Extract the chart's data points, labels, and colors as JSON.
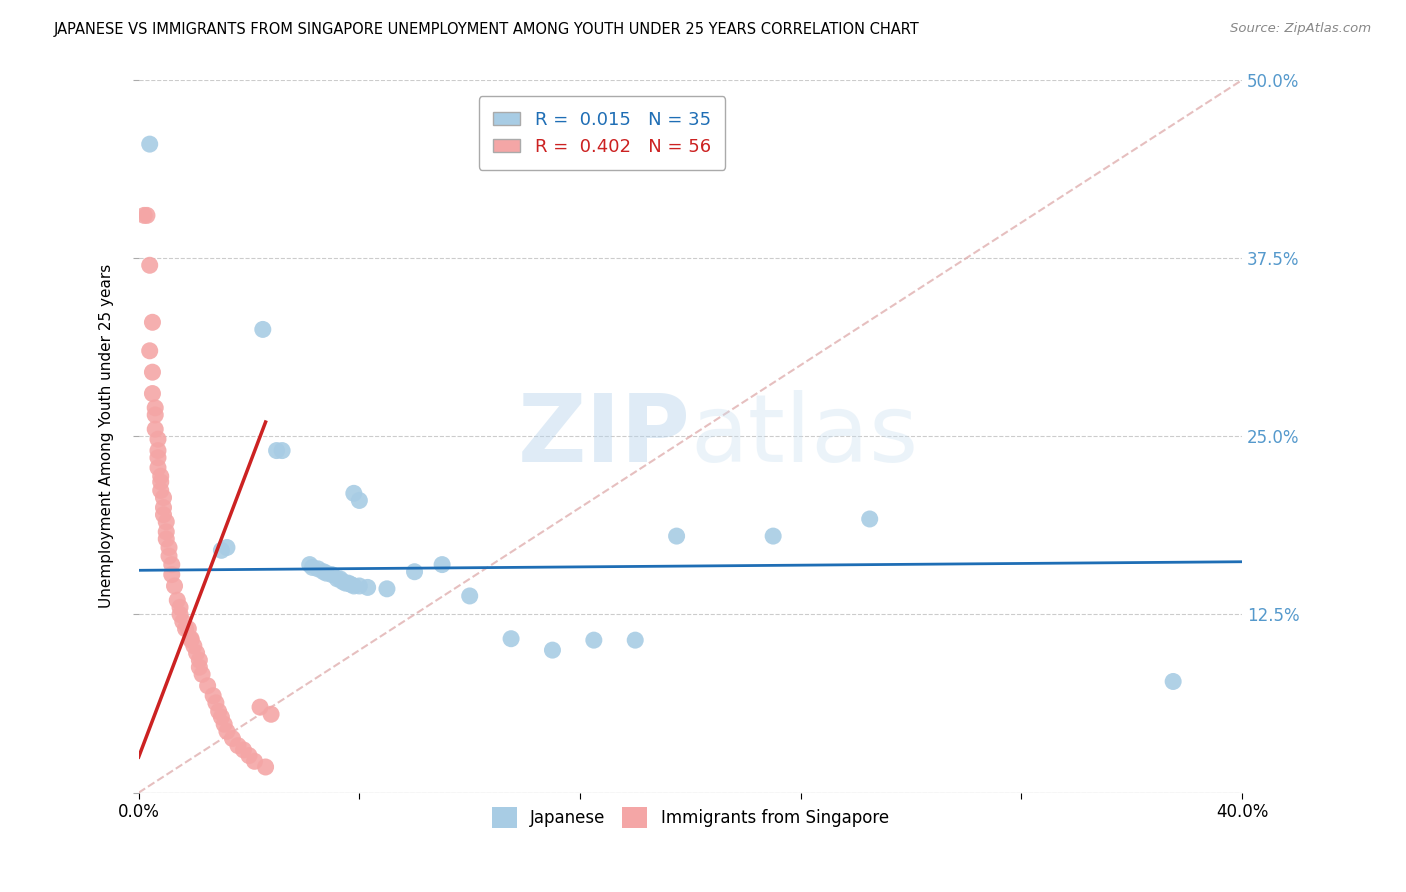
{
  "title": "JAPANESE VS IMMIGRANTS FROM SINGAPORE UNEMPLOYMENT AMONG YOUTH UNDER 25 YEARS CORRELATION CHART",
  "source": "Source: ZipAtlas.com",
  "ylabel": "Unemployment Among Youth under 25 years",
  "xlim": [
    0.0,
    0.4
  ],
  "ylim": [
    0.0,
    0.5
  ],
  "yticks": [
    0.0,
    0.125,
    0.25,
    0.375,
    0.5
  ],
  "legend1_R": "0.015",
  "legend1_N": "35",
  "legend2_R": "0.402",
  "legend2_N": "56",
  "blue_color": "#a8cce4",
  "pink_color": "#f4a6a6",
  "blue_line_color": "#1f6eb5",
  "pink_line_color": "#cc2222",
  "dashed_line_color": "#e0b0b0",
  "watermark_zip": "ZIP",
  "watermark_atlas": "atlas",
  "grid_color": "#cccccc",
  "right_tick_color": "#5599cc",
  "japanese_scatter": [
    [
      0.004,
      0.455
    ],
    [
      0.045,
      0.325
    ],
    [
      0.05,
      0.24
    ],
    [
      0.052,
      0.24
    ],
    [
      0.078,
      0.21
    ],
    [
      0.08,
      0.205
    ],
    [
      0.03,
      0.17
    ],
    [
      0.032,
      0.172
    ],
    [
      0.062,
      0.16
    ],
    [
      0.063,
      0.158
    ],
    [
      0.065,
      0.157
    ],
    [
      0.067,
      0.155
    ],
    [
      0.068,
      0.154
    ],
    [
      0.07,
      0.153
    ],
    [
      0.072,
      0.15
    ],
    [
      0.073,
      0.15
    ],
    [
      0.074,
      0.148
    ],
    [
      0.075,
      0.147
    ],
    [
      0.076,
      0.147
    ],
    [
      0.077,
      0.146
    ],
    [
      0.078,
      0.145
    ],
    [
      0.08,
      0.145
    ],
    [
      0.083,
      0.144
    ],
    [
      0.09,
      0.143
    ],
    [
      0.1,
      0.155
    ],
    [
      0.11,
      0.16
    ],
    [
      0.12,
      0.138
    ],
    [
      0.135,
      0.108
    ],
    [
      0.15,
      0.1
    ],
    [
      0.165,
      0.107
    ],
    [
      0.18,
      0.107
    ],
    [
      0.195,
      0.18
    ],
    [
      0.23,
      0.18
    ],
    [
      0.265,
      0.192
    ],
    [
      0.375,
      0.078
    ]
  ],
  "singapore_scatter": [
    [
      0.002,
      0.405
    ],
    [
      0.003,
      0.405
    ],
    [
      0.004,
      0.37
    ],
    [
      0.005,
      0.33
    ],
    [
      0.004,
      0.31
    ],
    [
      0.005,
      0.295
    ],
    [
      0.005,
      0.28
    ],
    [
      0.006,
      0.27
    ],
    [
      0.006,
      0.265
    ],
    [
      0.006,
      0.255
    ],
    [
      0.007,
      0.248
    ],
    [
      0.007,
      0.24
    ],
    [
      0.007,
      0.235
    ],
    [
      0.007,
      0.228
    ],
    [
      0.008,
      0.222
    ],
    [
      0.008,
      0.218
    ],
    [
      0.008,
      0.212
    ],
    [
      0.009,
      0.207
    ],
    [
      0.009,
      0.2
    ],
    [
      0.009,
      0.195
    ],
    [
      0.01,
      0.19
    ],
    [
      0.01,
      0.183
    ],
    [
      0.01,
      0.178
    ],
    [
      0.011,
      0.172
    ],
    [
      0.011,
      0.166
    ],
    [
      0.012,
      0.16
    ],
    [
      0.012,
      0.153
    ],
    [
      0.013,
      0.145
    ],
    [
      0.014,
      0.135
    ],
    [
      0.015,
      0.13
    ],
    [
      0.015,
      0.125
    ],
    [
      0.016,
      0.12
    ],
    [
      0.017,
      0.115
    ],
    [
      0.018,
      0.115
    ],
    [
      0.019,
      0.108
    ],
    [
      0.019,
      0.107
    ],
    [
      0.02,
      0.103
    ],
    [
      0.021,
      0.098
    ],
    [
      0.022,
      0.093
    ],
    [
      0.022,
      0.088
    ],
    [
      0.023,
      0.083
    ],
    [
      0.025,
      0.075
    ],
    [
      0.027,
      0.068
    ],
    [
      0.028,
      0.063
    ],
    [
      0.029,
      0.057
    ],
    [
      0.03,
      0.053
    ],
    [
      0.031,
      0.048
    ],
    [
      0.032,
      0.043
    ],
    [
      0.034,
      0.038
    ],
    [
      0.036,
      0.033
    ],
    [
      0.038,
      0.03
    ],
    [
      0.04,
      0.026
    ],
    [
      0.042,
      0.022
    ],
    [
      0.044,
      0.06
    ],
    [
      0.046,
      0.018
    ],
    [
      0.048,
      0.055
    ]
  ],
  "jp_line": [
    [
      0.0,
      0.156
    ],
    [
      0.4,
      0.162
    ]
  ],
  "sg_line": [
    [
      0.0,
      0.025
    ],
    [
      0.046,
      0.26
    ]
  ],
  "diag_line": [
    [
      0.0,
      0.0
    ],
    [
      0.4,
      0.5
    ]
  ]
}
